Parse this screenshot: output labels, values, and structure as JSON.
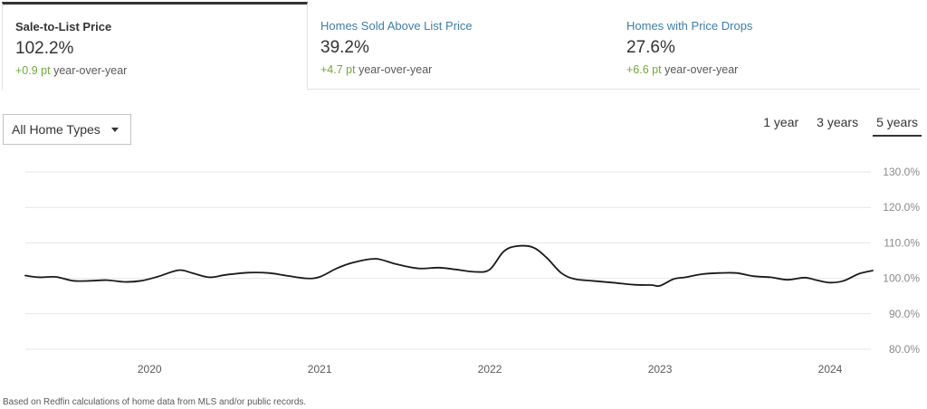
{
  "tabs": [
    {
      "title": "Sale-to-List Price",
      "value": "102.2%",
      "delta": "+0.9 pt",
      "delta_suffix": "year-over-year"
    },
    {
      "title": "Homes Sold Above List Price",
      "value": "39.2%",
      "delta": "+4.7 pt",
      "delta_suffix": "year-over-year"
    },
    {
      "title": "Homes with Price Drops",
      "value": "27.6%",
      "delta": "+6.6 pt",
      "delta_suffix": "year-over-year"
    }
  ],
  "active_tab": 0,
  "home_type_select": {
    "selected": "All Home Types"
  },
  "ranges": [
    "1 year",
    "3 years",
    "5 years"
  ],
  "active_range": 2,
  "footnote": "Based on Redfin calculations of home data from MLS and/or public records.",
  "colors": {
    "line": "#1a1a1a",
    "positive_delta": "#70a83b",
    "link": "#3d7ea6"
  },
  "chart_data": {
    "type": "line",
    "title": "",
    "xlabel": "",
    "ylabel": "",
    "ylim": [
      80,
      130
    ],
    "y_ticks": [
      "80.0%",
      "90.0%",
      "100.0%",
      "110.0%",
      "120.0%",
      "130.0%"
    ],
    "y_tick_values": [
      80,
      90,
      100,
      110,
      120,
      130
    ],
    "x_ticks": [
      "2020",
      "2021",
      "2022",
      "2023",
      "2024"
    ],
    "x_tick_values": [
      2020.0,
      2021.0,
      2022.0,
      2023.0,
      2024.0
    ],
    "xlim": [
      2019.27,
      2024.25
    ],
    "grid": true,
    "series": [
      {
        "x": [
          2019.27,
          2019.35,
          2019.45,
          2019.55,
          2019.65,
          2019.75,
          2019.85,
          2019.95,
          2020.05,
          2020.17,
          2020.25,
          2020.35,
          2020.45,
          2020.58,
          2020.7,
          2020.8,
          2020.92,
          2021.0,
          2021.1,
          2021.2,
          2021.33,
          2021.45,
          2021.58,
          2021.7,
          2021.8,
          2021.92,
          2022.0,
          2022.08,
          2022.15,
          2022.25,
          2022.33,
          2022.42,
          2022.5,
          2022.6,
          2022.72,
          2022.85,
          2022.95,
          2023.0,
          2023.08,
          2023.15,
          2023.25,
          2023.35,
          2023.45,
          2023.55,
          2023.65,
          2023.75,
          2023.85,
          2023.92,
          2024.0,
          2024.08,
          2024.17,
          2024.25
        ],
        "y": [
          100.8,
          100.3,
          100.4,
          99.3,
          99.3,
          99.5,
          99.0,
          99.3,
          100.5,
          102.3,
          101.5,
          100.3,
          101.0,
          101.6,
          101.5,
          100.8,
          100.0,
          100.4,
          102.8,
          104.5,
          105.5,
          104.0,
          102.8,
          103.0,
          102.5,
          101.8,
          102.5,
          107.5,
          109.0,
          108.8,
          106.0,
          101.5,
          99.8,
          99.3,
          98.8,
          98.2,
          98.1,
          97.9,
          99.8,
          100.3,
          101.2,
          101.5,
          101.5,
          100.6,
          100.3,
          99.6,
          100.2,
          99.5,
          98.8,
          99.3,
          101.3,
          102.2
        ]
      }
    ]
  }
}
